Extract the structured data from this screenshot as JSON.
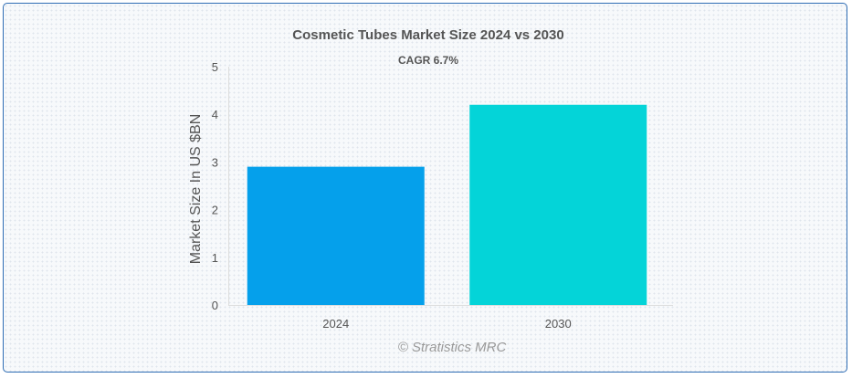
{
  "chart_data": {
    "type": "bar",
    "title": "Cosmetic Tubes Market Size 2024 vs 2030",
    "subtitle": "CAGR 6.7%",
    "ylabel": "Market Size In US $BN",
    "xlabel": "",
    "categories": [
      "2024",
      "2030"
    ],
    "values": [
      2.9,
      4.2
    ],
    "colors": [
      "#05a0eb",
      "#04d4d8"
    ],
    "ylim": [
      0,
      5
    ],
    "yticks": [
      "0",
      "1",
      "2",
      "3",
      "4",
      "5"
    ],
    "grid": false,
    "legend": "none"
  },
  "credit": "© Stratistics MRC"
}
